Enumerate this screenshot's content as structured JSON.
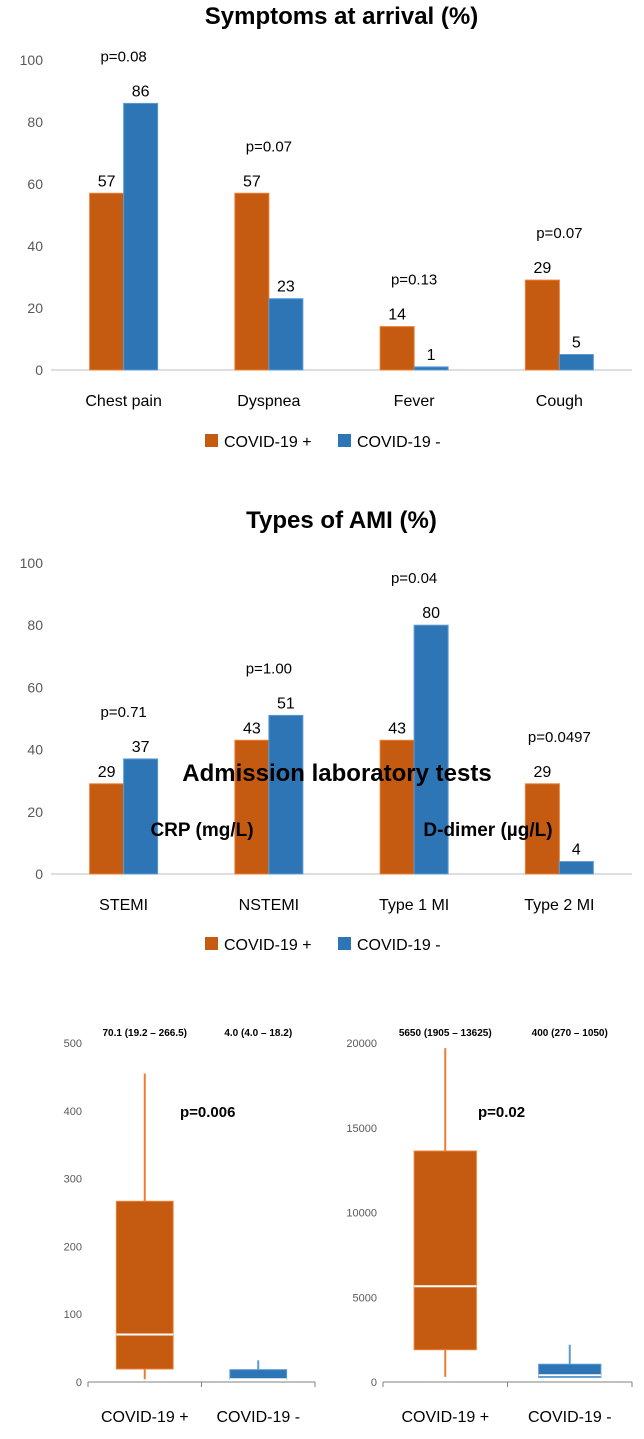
{
  "colors": {
    "positive": "#C55A11",
    "negative": "#2E75B6",
    "positive_edge": "#ED7D31",
    "negative_edge": "#5B9BD5",
    "axis": "#808080",
    "grid_text": "#595959"
  },
  "chart_data": [
    {
      "type": "bar",
      "title": "Symptoms at arrival (%)",
      "categories": [
        "Chest pain",
        "Dyspnea",
        "Fever",
        "Cough"
      ],
      "series": [
        {
          "name": "COVID-19 +",
          "values": [
            57,
            57,
            14,
            29
          ]
        },
        {
          "name": "COVID-19 -",
          "values": [
            86,
            23,
            1,
            5
          ]
        }
      ],
      "p_values": [
        "p=0.08",
        "p=0.07",
        "p=0.13",
        "p=0.07"
      ],
      "y_ticks": [
        0,
        20,
        40,
        60,
        80,
        100
      ],
      "ylim": [
        0,
        100
      ],
      "legend": "bottom"
    },
    {
      "type": "bar",
      "title": "Types of AMI (%)",
      "categories": [
        "STEMI",
        "NSTEMI",
        "Type 1 MI",
        "Type 2 MI"
      ],
      "series": [
        {
          "name": "COVID-19 +",
          "values": [
            29,
            43,
            43,
            29
          ]
        },
        {
          "name": "COVID-19 -",
          "values": [
            37,
            51,
            80,
            4
          ]
        }
      ],
      "p_values": [
        "p=0.71",
        "p=1.00",
        "p=0.04",
        "p=0.0497"
      ],
      "y_ticks": [
        0,
        20,
        40,
        60,
        80,
        100
      ],
      "ylim": [
        0,
        100
      ],
      "legend": "bottom"
    },
    {
      "type": "box",
      "title": "Admission laboratory tests",
      "subtitle": "CRP (mg/L)",
      "categories": [
        "COVID-19 +",
        "COVID-19 -"
      ],
      "boxes": [
        {
          "summary": "70.1 (19.2 – 266.5)",
          "median": 70.1,
          "q1": 19.2,
          "q3": 266.5,
          "min": 4,
          "max": 455
        },
        {
          "summary": "4.0 (4.0 – 18.2)",
          "median": 4.0,
          "q1": 4.0,
          "q3": 18.2,
          "min": 4,
          "max": 32
        }
      ],
      "p_value": "p=0.006",
      "y_ticks": [
        0,
        100,
        200,
        300,
        400,
        500
      ],
      "ylim": [
        0,
        500
      ]
    },
    {
      "type": "box",
      "subtitle": "D-dimer (µg/L)",
      "categories": [
        "COVID-19 +",
        "COVID-19 -"
      ],
      "boxes": [
        {
          "summary": "5650 (1905 – 13625)",
          "median": 5650,
          "q1": 1905,
          "q3": 13625,
          "min": 300,
          "max": 19700
        },
        {
          "summary": "400 (270 – 1050)",
          "median": 400,
          "q1": 270,
          "q3": 1050,
          "min": 270,
          "max": 2200
        }
      ],
      "p_value": "p=0.02",
      "y_ticks": [
        0,
        5000,
        10000,
        15000,
        20000
      ],
      "ylim": [
        0,
        20000
      ]
    }
  ]
}
